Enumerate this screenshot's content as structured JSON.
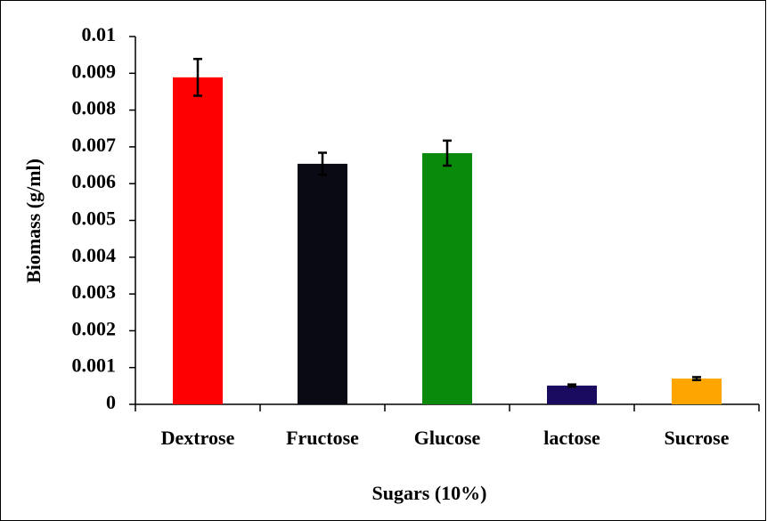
{
  "chart_data": {
    "type": "bar",
    "x_label": "Sugars (10%)",
    "y_label": "Biomass (g/ml)",
    "categories": [
      "Dextrose",
      "Fructose",
      "Glucose",
      "lactose",
      "Sucrose"
    ],
    "values": [
      0.00889,
      0.00654,
      0.00683,
      0.00051,
      0.0007
    ],
    "errors": [
      0.0005,
      0.0003,
      0.00034,
      3e-05,
      4e-05
    ],
    "colors": [
      "#ff0000",
      "#0a0a14",
      "#0a8a0a",
      "#1a0a60",
      "#ffa500"
    ],
    "ylim": [
      0,
      0.01
    ],
    "yticks": [
      0,
      0.001,
      0.002,
      0.003,
      0.004,
      0.005,
      0.006,
      0.007,
      0.008,
      0.009,
      0.01
    ],
    "grid": false
  }
}
